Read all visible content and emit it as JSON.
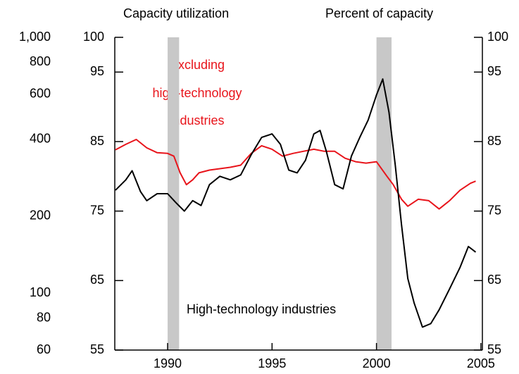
{
  "chart_data": {
    "type": "line",
    "annotations": [
      "Capacity utilization",
      "Percent of capacity",
      "Excluding",
      "high-technology",
      "industries",
      "High-technology industries"
    ],
    "xlim": [
      1987.47,
      2005.07
    ],
    "xticks": [
      1990,
      1995,
      2000,
      2005
    ],
    "ylim": [
      55,
      100
    ],
    "yticks": [
      55,
      65,
      75,
      85,
      95,
      100
    ],
    "y2lim": [
      60,
      1000
    ],
    "y2log": true,
    "y2ticks": [
      60,
      80,
      100,
      200,
      400,
      600,
      800,
      {
        "value": 1000,
        "label": "1,000"
      }
    ],
    "shaded_periods": [
      [
        1990.0,
        1990.55
      ],
      [
        2000.0,
        2000.72
      ]
    ],
    "shade_color": "#c8c8c8",
    "series": [
      {
        "name": "Excluding high-technology industries",
        "color": "#e8141b",
        "x": [
          1987.5,
          1988.0,
          1988.5,
          1989.0,
          1989.5,
          1990.0,
          1990.3,
          1990.6,
          1990.9,
          1991.2,
          1991.5,
          1992.0,
          1992.5,
          1993.0,
          1993.5,
          1994.0,
          1994.5,
          1995.0,
          1995.5,
          1996.0,
          1996.5,
          1997.0,
          1997.5,
          1998.0,
          1998.5,
          1999.0,
          1999.5,
          2000.0,
          2000.5,
          2000.8,
          2001.2,
          2001.5,
          2002.0,
          2002.5,
          2003.0,
          2003.5,
          2004.0,
          2004.5,
          2004.75
        ],
        "values": [
          83.8,
          84.6,
          85.3,
          84.1,
          83.4,
          83.3,
          82.9,
          80.5,
          78.8,
          79.5,
          80.5,
          80.9,
          81.1,
          81.3,
          81.6,
          83.3,
          84.4,
          83.9,
          82.9,
          83.3,
          83.6,
          83.9,
          83.6,
          83.6,
          82.6,
          82.1,
          81.9,
          82.1,
          80.0,
          78.8,
          76.7,
          75.7,
          76.7,
          76.5,
          75.3,
          76.5,
          78.0,
          79.0,
          79.3
        ]
      },
      {
        "name": "High-technology industries",
        "color": "#000000",
        "x": [
          1987.5,
          1988.0,
          1988.3,
          1988.7,
          1989.0,
          1989.5,
          1990.0,
          1990.4,
          1990.8,
          1991.2,
          1991.6,
          1992.0,
          1992.5,
          1993.0,
          1993.5,
          1994.0,
          1994.5,
          1995.0,
          1995.4,
          1995.8,
          1996.2,
          1996.6,
          1997.0,
          1997.3,
          1997.6,
          1998.0,
          1998.4,
          1998.8,
          1999.2,
          1999.6,
          2000.0,
          2000.3,
          2000.6,
          2000.9,
          2001.2,
          2001.5,
          2001.8,
          2002.2,
          2002.6,
          2003.0,
          2003.5,
          2004.0,
          2004.4,
          2004.75
        ],
        "values": [
          78.0,
          79.5,
          80.8,
          77.8,
          76.5,
          77.5,
          77.5,
          76.2,
          75.0,
          76.5,
          75.8,
          78.8,
          80.0,
          79.5,
          80.2,
          83.1,
          85.6,
          86.1,
          84.6,
          80.9,
          80.5,
          82.3,
          86.1,
          86.6,
          83.6,
          78.8,
          78.2,
          82.9,
          85.6,
          88.1,
          91.7,
          94.0,
          89.2,
          81.6,
          73.0,
          65.3,
          61.8,
          58.3,
          58.8,
          60.8,
          63.8,
          66.9,
          69.9,
          69.1
        ]
      }
    ]
  }
}
